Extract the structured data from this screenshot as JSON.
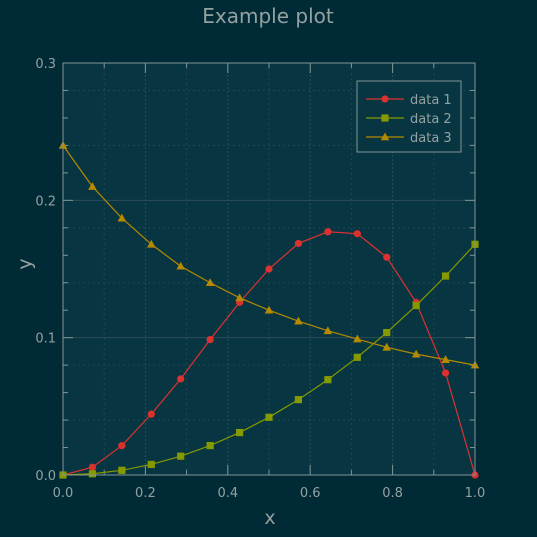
{
  "colors": {
    "background": "#002b36",
    "axes_background": "#073642",
    "frame": "#839496",
    "text": "#93a1a1",
    "grid_major": "#2c4e56",
    "grid_minor": "#214752"
  },
  "chart_data": {
    "type": "line",
    "title": "Example plot",
    "xlabel": "x",
    "ylabel": "y",
    "xlim": [
      0,
      1
    ],
    "ylim": [
      0,
      0.3
    ],
    "x_ticks": [
      "0.0",
      "0.2",
      "0.4",
      "0.6",
      "0.8",
      "1.0"
    ],
    "y_ticks": [
      "0.0",
      "0.1",
      "0.2",
      "0.3"
    ],
    "grid": true,
    "legend_position": "top-right",
    "x": [
      0.0,
      0.0714,
      0.1429,
      0.2143,
      0.2857,
      0.3571,
      0.4286,
      0.5,
      0.5714,
      0.6429,
      0.7143,
      0.7857,
      0.8571,
      0.9286,
      1.0
    ],
    "series": [
      {
        "name": "data 1",
        "color": "#dc322f",
        "marker": "circle",
        "values": [
          0.0,
          0.0057,
          0.0214,
          0.0443,
          0.07,
          0.0986,
          0.1257,
          0.15,
          0.1686,
          0.1771,
          0.1757,
          0.1586,
          0.1257,
          0.0743,
          0.0
        ]
      },
      {
        "name": "data 2",
        "color": "#859900",
        "marker": "square",
        "values": [
          0.0,
          0.0009,
          0.0034,
          0.0077,
          0.0137,
          0.0214,
          0.0309,
          0.042,
          0.0549,
          0.0694,
          0.0857,
          0.1037,
          0.1234,
          0.1449,
          0.168
        ]
      },
      {
        "name": "data 3",
        "color": "#b58900",
        "marker": "triangle",
        "values": [
          0.24,
          0.21,
          0.187,
          0.168,
          0.152,
          0.14,
          0.129,
          0.12,
          0.112,
          0.105,
          0.099,
          0.093,
          0.088,
          0.084,
          0.08
        ]
      }
    ]
  }
}
